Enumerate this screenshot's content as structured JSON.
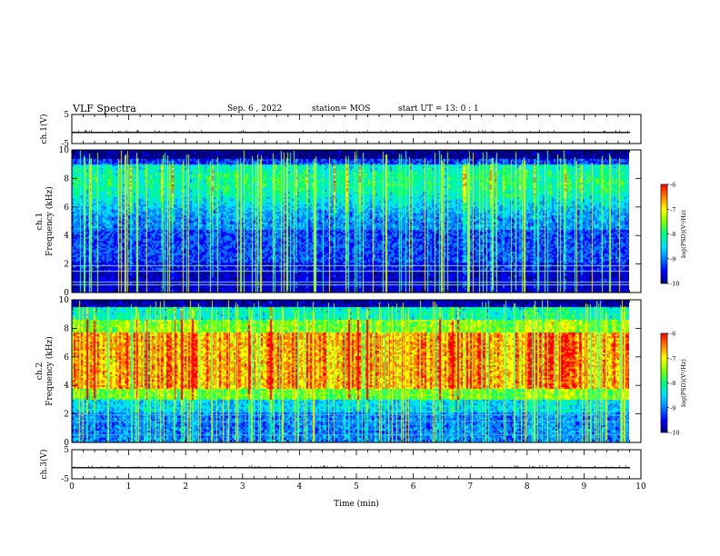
{
  "header": {
    "title": "VLF Spectra",
    "date": "Sep. 6 , 2022",
    "station": "station= MOS",
    "start": "start UT =  13: 0  : 1"
  },
  "chart_data": [
    {
      "type": "line",
      "name": "ch1-voltage",
      "ylabel": "ch.1(V)",
      "ylim": [
        -5,
        5
      ],
      "yticks": [
        "5",
        "-5"
      ],
      "xlim": [
        0,
        10
      ],
      "trace_level": -1.2
    },
    {
      "type": "heatmap",
      "name": "ch1-spectrogram",
      "ylabel": "ch.1\nFrequency (kHz)",
      "ylabel_lines": [
        "ch.1",
        "Frequency (kHz)"
      ],
      "ylim": [
        0,
        10
      ],
      "yticks": [
        "0",
        "2",
        "4",
        "6",
        "8",
        "10"
      ],
      "xlim": [
        0,
        10
      ],
      "data_end_min": 9.8,
      "colorbar": {
        "label": "log(PSD)(V²/Hz)",
        "range": [
          -10,
          -6
        ],
        "ticks": [
          "-6",
          "-7",
          "-8",
          "-9",
          "-10"
        ]
      }
    },
    {
      "type": "heatmap",
      "name": "ch2-spectrogram",
      "ylabel": "ch.2\nFrequency (kHz)",
      "ylabel_lines": [
        "ch.2",
        "Frequency (kHz)"
      ],
      "ylim": [
        0,
        10
      ],
      "yticks": [
        "0",
        "2",
        "4",
        "6",
        "8",
        "10"
      ],
      "xlim": [
        0,
        10
      ],
      "data_end_min": 9.8,
      "colorbar": {
        "label": "log(PSD)(V²/Hz)",
        "range": [
          -10,
          -6
        ],
        "ticks": [
          "-6",
          "-7",
          "-8",
          "-9",
          "-10"
        ]
      }
    },
    {
      "type": "line",
      "name": "ch3-voltage",
      "ylabel": "ch.3(V)",
      "ylim": [
        -5,
        5
      ],
      "yticks": [
        "5",
        "-5"
      ],
      "xlim": [
        0,
        10
      ],
      "trace_level": -1.2
    }
  ],
  "xaxis": {
    "label": "Time (min)",
    "ticks": [
      "0",
      "1",
      "2",
      "3",
      "4",
      "5",
      "6",
      "7",
      "8",
      "9",
      "10"
    ]
  },
  "colors": {
    "colormap": [
      "#00007a",
      "#0000ff",
      "#0080ff",
      "#00e0ff",
      "#00ff80",
      "#80ff00",
      "#ffff00",
      "#ff8000",
      "#ff0000",
      "#ffffff"
    ]
  }
}
